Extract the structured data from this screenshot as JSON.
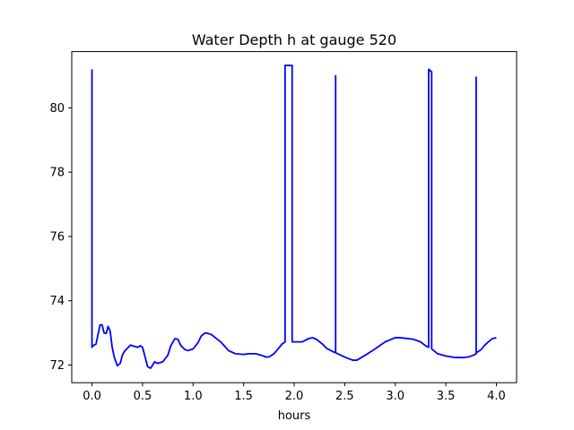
{
  "chart_data": {
    "type": "line",
    "title": "Water Depth h at gauge 520",
    "xlabel": "hours",
    "ylabel": "",
    "xlim": [
      -0.2,
      4.2
    ],
    "ylim": [
      71.45,
      81.75
    ],
    "xticks": [
      0.0,
      0.5,
      1.0,
      1.5,
      2.0,
      2.5,
      3.0,
      3.5,
      4.0
    ],
    "xtick_labels": [
      "0.0",
      "0.5",
      "1.0",
      "1.5",
      "2.0",
      "2.5",
      "3.0",
      "3.5",
      "4.0"
    ],
    "yticks": [
      72,
      74,
      76,
      78,
      80
    ],
    "ytick_labels": [
      "72",
      "74",
      "76",
      "78",
      "80"
    ],
    "grid": false,
    "legend": "none",
    "colors": {
      "line": "#0000ff",
      "axes": "#000000",
      "background": "#ffffff"
    },
    "series": [
      {
        "x": [
          0.0,
          0.0,
          0.01,
          0.01,
          0.04,
          0.06,
          0.08,
          0.1,
          0.12,
          0.14,
          0.16,
          0.18,
          0.2,
          0.22,
          0.25,
          0.28,
          0.3,
          0.32,
          0.35,
          0.38,
          0.42,
          0.45,
          0.48,
          0.5,
          0.53,
          0.55,
          0.58,
          0.6,
          0.62,
          0.65,
          0.7,
          0.75,
          0.78,
          0.82,
          0.85,
          0.88,
          0.92,
          0.95,
          1.0,
          1.05,
          1.08,
          1.12,
          1.15,
          1.18,
          1.22,
          1.28,
          1.35,
          1.42,
          1.5,
          1.55,
          1.62,
          1.68,
          1.72,
          1.75,
          1.8,
          1.84,
          1.88,
          1.91,
          1.91,
          1.98,
          1.98,
          2.02,
          2.08,
          2.14,
          2.18,
          2.22,
          2.28,
          2.32,
          2.38,
          2.41,
          2.41,
          2.41,
          2.45,
          2.52,
          2.58,
          2.62,
          2.7,
          2.8,
          2.9,
          3.0,
          3.05,
          3.1,
          3.18,
          3.25,
          3.3,
          3.33,
          3.33,
          3.36,
          3.36,
          3.38,
          3.42,
          3.5,
          3.58,
          3.66,
          3.72,
          3.77,
          3.8,
          3.8,
          3.8,
          3.85,
          3.88,
          3.92,
          3.96,
          4.0
        ],
        "y": [
          81.2,
          72.55,
          72.6,
          72.6,
          72.65,
          72.95,
          73.25,
          73.25,
          73.0,
          72.98,
          73.2,
          73.05,
          72.55,
          72.25,
          71.98,
          72.05,
          72.3,
          72.42,
          72.52,
          72.62,
          72.58,
          72.55,
          72.6,
          72.55,
          72.2,
          71.95,
          71.9,
          72.0,
          72.1,
          72.05,
          72.1,
          72.3,
          72.6,
          72.82,
          72.8,
          72.6,
          72.48,
          72.45,
          72.5,
          72.7,
          72.9,
          73.0,
          72.98,
          72.95,
          72.85,
          72.7,
          72.45,
          72.35,
          72.33,
          72.35,
          72.35,
          72.3,
          72.25,
          72.25,
          72.35,
          72.5,
          72.65,
          72.72,
          81.32,
          81.32,
          72.72,
          72.72,
          72.72,
          72.82,
          72.85,
          72.8,
          72.65,
          72.52,
          72.42,
          72.38,
          81.0,
          72.38,
          72.32,
          72.22,
          72.15,
          72.15,
          72.3,
          72.5,
          72.72,
          72.85,
          72.85,
          72.83,
          72.8,
          72.72,
          72.6,
          72.55,
          81.2,
          81.12,
          72.5,
          72.45,
          72.35,
          72.28,
          72.24,
          72.23,
          72.25,
          72.3,
          72.35,
          80.95,
          72.38,
          72.48,
          72.6,
          72.72,
          72.82,
          72.85
        ]
      }
    ]
  }
}
